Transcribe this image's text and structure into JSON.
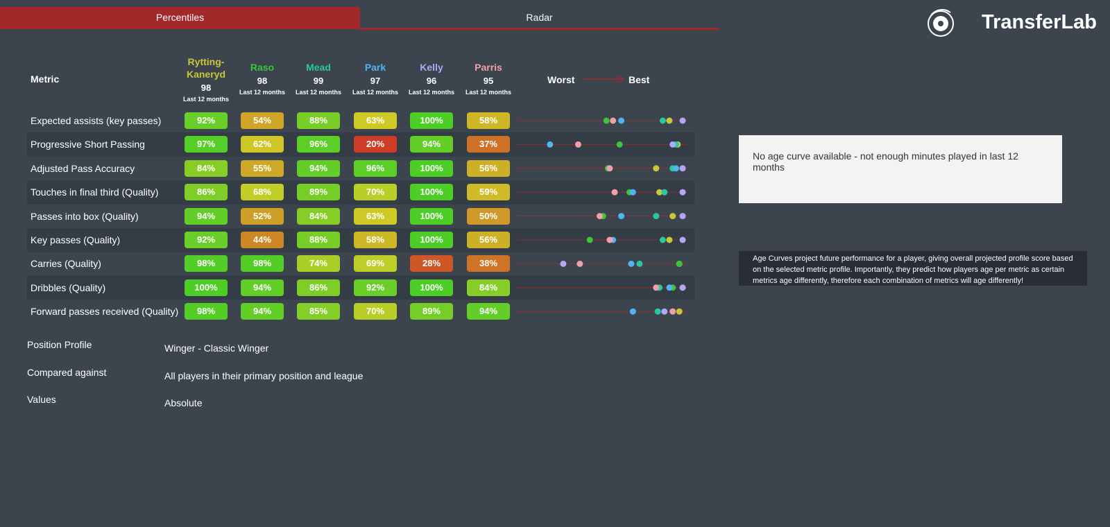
{
  "tabs": [
    "Percentiles",
    "Radar"
  ],
  "logo": "TransferLab",
  "table": {
    "metric_header": "Metric",
    "scale": {
      "worst": "Worst",
      "best": "Best"
    },
    "players": [
      {
        "name": "Rytting-Kaneryd",
        "score": 98,
        "period": "Last 12 months",
        "color": "#c8c83a"
      },
      {
        "name": "Raso",
        "score": 98,
        "period": "Last 12 months",
        "color": "#3cc43c"
      },
      {
        "name": "Mead",
        "score": 99,
        "period": "Last 12 months",
        "color": "#28c8a0"
      },
      {
        "name": "Park",
        "score": 97,
        "period": "Last 12 months",
        "color": "#50b4f0"
      },
      {
        "name": "Kelly",
        "score": 96,
        "period": "Last 12 months",
        "color": "#b4a8f4"
      },
      {
        "name": "Parris",
        "score": 95,
        "period": "Last 12 months",
        "color": "#f0a0a8"
      }
    ],
    "rows": [
      {
        "metric": "Expected assists (key passes)",
        "values": [
          {
            "value": 92,
            "label": "92%"
          },
          {
            "value": 54,
            "label": "54%"
          },
          {
            "value": 88,
            "label": "88%"
          },
          {
            "value": 63,
            "label": "63%"
          },
          {
            "value": 100,
            "label": "100%"
          },
          {
            "value": 58,
            "label": "58%"
          }
        ]
      },
      {
        "metric": "Progressive Short Passing",
        "values": [
          {
            "value": 97,
            "label": "97%"
          },
          {
            "value": 62,
            "label": "62%"
          },
          {
            "value": 96,
            "label": "96%"
          },
          {
            "value": 20,
            "label": "20%"
          },
          {
            "value": 94,
            "label": "94%"
          },
          {
            "value": 37,
            "label": "37%"
          }
        ]
      },
      {
        "metric": "Adjusted Pass Accuracy",
        "values": [
          {
            "value": 84,
            "label": "84%"
          },
          {
            "value": 55,
            "label": "55%"
          },
          {
            "value": 94,
            "label": "94%"
          },
          {
            "value": 96,
            "label": "96%"
          },
          {
            "value": 100,
            "label": "100%"
          },
          {
            "value": 56,
            "label": "56%"
          }
        ]
      },
      {
        "metric": "Touches in final third (Quality)",
        "values": [
          {
            "value": 86,
            "label": "86%"
          },
          {
            "value": 68,
            "label": "68%"
          },
          {
            "value": 89,
            "label": "89%"
          },
          {
            "value": 70,
            "label": "70%"
          },
          {
            "value": 100,
            "label": "100%"
          },
          {
            "value": 59,
            "label": "59%"
          }
        ]
      },
      {
        "metric": "Passes into box (Quality)",
        "values": [
          {
            "value": 94,
            "label": "94%"
          },
          {
            "value": 52,
            "label": "52%"
          },
          {
            "value": 84,
            "label": "84%"
          },
          {
            "value": 63,
            "label": "63%"
          },
          {
            "value": 100,
            "label": "100%"
          },
          {
            "value": 50,
            "label": "50%"
          }
        ]
      },
      {
        "metric": "Key passes (Quality)",
        "values": [
          {
            "value": 92,
            "label": "92%"
          },
          {
            "value": 44,
            "label": "44%"
          },
          {
            "value": 88,
            "label": "88%"
          },
          {
            "value": 58,
            "label": "58%"
          },
          {
            "value": 100,
            "label": "100%"
          },
          {
            "value": 56,
            "label": "56%"
          }
        ]
      },
      {
        "metric": "Carries (Quality)",
        "values": [
          {
            "value": 98,
            "label": "98%"
          },
          {
            "value": 98,
            "label": "98%"
          },
          {
            "value": 74,
            "label": "74%"
          },
          {
            "value": 69,
            "label": "69%"
          },
          {
            "value": 28,
            "label": "28%"
          },
          {
            "value": 38,
            "label": "38%"
          }
        ]
      },
      {
        "metric": "Dribbles (Quality)",
        "values": [
          {
            "value": 100,
            "label": "100%"
          },
          {
            "value": 94,
            "label": "94%"
          },
          {
            "value": 86,
            "label": "86%"
          },
          {
            "value": 92,
            "label": "92%"
          },
          {
            "value": 100,
            "label": "100%"
          },
          {
            "value": 84,
            "label": "84%"
          }
        ]
      },
      {
        "metric": "Forward passes received (Quality)",
        "values": [
          {
            "value": 98,
            "label": "98%"
          },
          {
            "value": 94,
            "label": "94%"
          },
          {
            "value": 85,
            "label": "85%"
          },
          {
            "value": 70,
            "label": "70%"
          },
          {
            "value": 89,
            "label": "89%"
          },
          {
            "value": 94,
            "label": "94%"
          }
        ]
      }
    ]
  },
  "age_curve": {
    "message": "No age curve available - not enough minutes played in last 12 months",
    "note": "Age Curves project future performance for a player, giving overall projected profile score based on the selected metric profile. Importantly, they predict how players age per metric as certain metrics age differently, therefore each combination of metrics will age differently!"
  },
  "profile": [
    {
      "label": "Position Profile",
      "value": "Winger - Classic Winger"
    },
    {
      "label": "Compared against",
      "value": "All players in their primary position and league"
    },
    {
      "label": "Values",
      "value": "Absolute"
    }
  ]
}
